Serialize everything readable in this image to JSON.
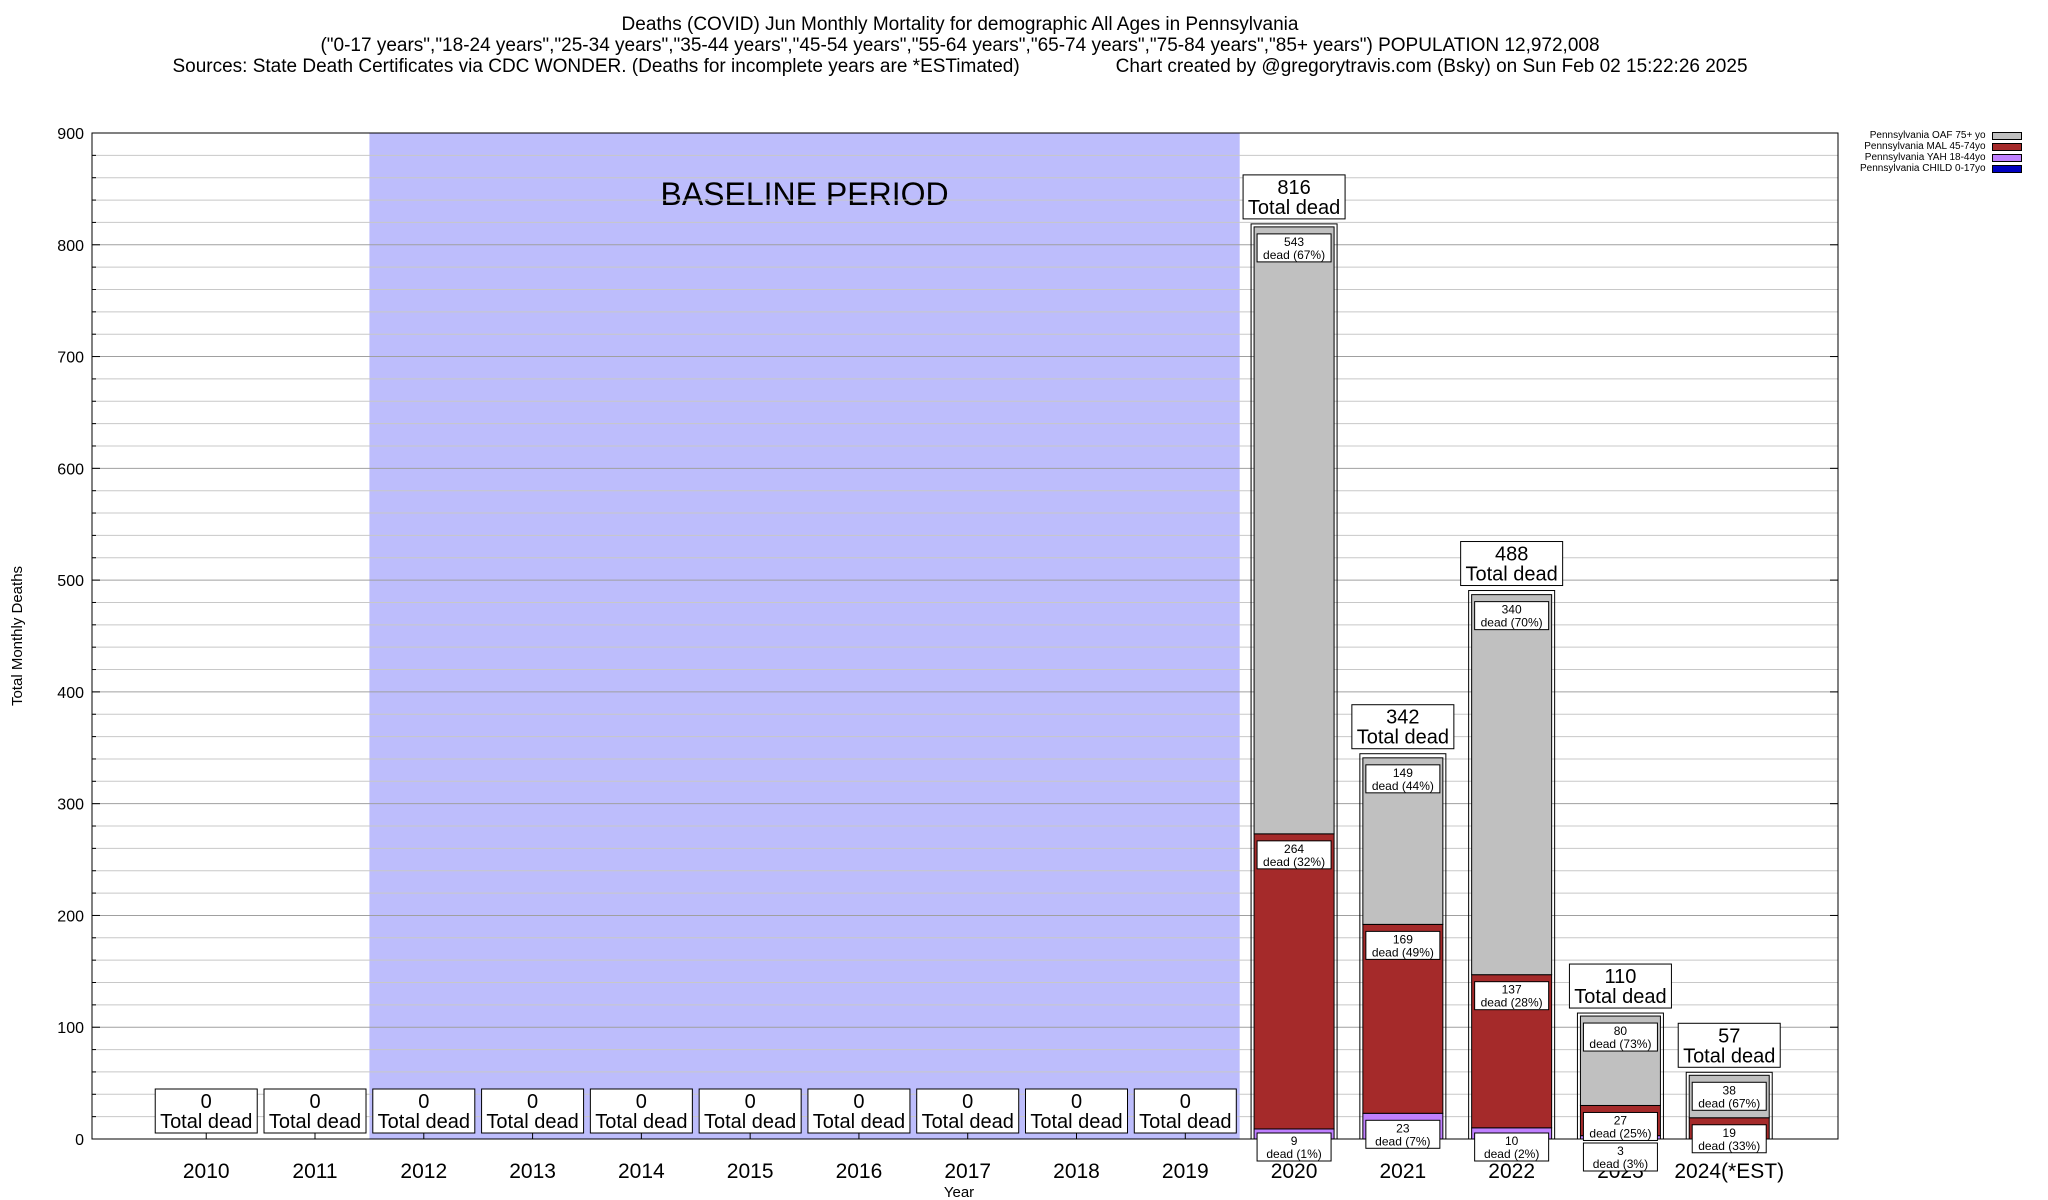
{
  "header": {
    "title": "Deaths (COVID) Jun Monthly Mortality for demographic All Ages in Pennsylvania",
    "subtitle": "(\"0-17 years\",\"18-24 years\",\"25-34 years\",\"35-44 years\",\"45-54 years\",\"55-64 years\",\"65-74 years\",\"75-84 years\",\"85+ years\") POPULATION 12,972,008",
    "sources": "Sources: State Death Certificates via CDC WONDER. (Deaths for incomplete years are *ESTimated)",
    "credit": "Chart created by @gregorytravis.com (Bsky) on Sun Feb 02 15:22:26 2025"
  },
  "legend": [
    {
      "label": "Pennsylvania OAF 75+ yo",
      "color": "#c0c0c0"
    },
    {
      "label": "Pennsylvania MAL 45-74yo",
      "color": "#a52a2a"
    },
    {
      "label": "Pennsylvania YAH 18-44yo",
      "color": "#c080ff"
    },
    {
      "label": "Pennsylvania CHILD 0-17yo",
      "color": "#0000c0"
    }
  ],
  "chart_data": {
    "type": "bar",
    "stacked": true,
    "xlabel": "Year",
    "ylabel": "Total Monthly Deaths",
    "ylim": [
      0,
      900
    ],
    "yticks": [
      0,
      100,
      200,
      300,
      400,
      500,
      600,
      700,
      800,
      900
    ],
    "grid": true,
    "legend_position": "top-right outside",
    "baseline_label": "BASELINE PERIOD",
    "baseline_range": [
      "2012",
      "2019"
    ],
    "baseline_color": "#bdbdfc",
    "categories": [
      "2010",
      "2011",
      "2012",
      "2013",
      "2014",
      "2015",
      "2016",
      "2017",
      "2018",
      "2019",
      "2020",
      "2021",
      "2022",
      "2023",
      "2024(*EST)"
    ],
    "totals": [
      0,
      0,
      0,
      0,
      0,
      0,
      0,
      0,
      0,
      0,
      816,
      342,
      488,
      110,
      57
    ],
    "total_suffix": "Total dead",
    "series": [
      {
        "name": "Pennsylvania CHILD 0-17yo",
        "color": "#0000c0",
        "values": [
          0,
          0,
          0,
          0,
          0,
          0,
          0,
          0,
          0,
          0,
          0,
          0,
          0,
          0,
          0
        ]
      },
      {
        "name": "Pennsylvania YAH 18-44yo",
        "color": "#c080ff",
        "values": [
          0,
          0,
          0,
          0,
          0,
          0,
          0,
          0,
          0,
          0,
          9,
          23,
          10,
          3,
          0
        ]
      },
      {
        "name": "Pennsylvania MAL 45-74yo",
        "color": "#a52a2a",
        "values": [
          0,
          0,
          0,
          0,
          0,
          0,
          0,
          0,
          0,
          0,
          264,
          169,
          137,
          27,
          19
        ]
      },
      {
        "name": "Pennsylvania OAF 75+ yo",
        "color": "#c0c0c0",
        "values": [
          0,
          0,
          0,
          0,
          0,
          0,
          0,
          0,
          0,
          0,
          543,
          149,
          340,
          80,
          38
        ]
      }
    ],
    "segment_labels": [
      {
        "category": "2020",
        "series": "Pennsylvania OAF 75+ yo",
        "value": "543",
        "text": "dead (67%)"
      },
      {
        "category": "2020",
        "series": "Pennsylvania MAL 45-74yo",
        "value": "264",
        "text": "dead (32%)"
      },
      {
        "category": "2020",
        "series": "Pennsylvania YAH 18-44yo",
        "value": "9",
        "text": "dead (1%)"
      },
      {
        "category": "2021",
        "series": "Pennsylvania OAF 75+ yo",
        "value": "149",
        "text": "dead (44%)"
      },
      {
        "category": "2021",
        "series": "Pennsylvania MAL 45-74yo",
        "value": "169",
        "text": "dead (49%)"
      },
      {
        "category": "2021",
        "series": "Pennsylvania YAH 18-44yo",
        "value": "23",
        "text": "dead (7%)"
      },
      {
        "category": "2022",
        "series": "Pennsylvania OAF 75+ yo",
        "value": "340",
        "text": "dead (70%)"
      },
      {
        "category": "2022",
        "series": "Pennsylvania MAL 45-74yo",
        "value": "137",
        "text": "dead (28%)"
      },
      {
        "category": "2022",
        "series": "Pennsylvania YAH 18-44yo",
        "value": "10",
        "text": "dead (2%)"
      },
      {
        "category": "2023",
        "series": "Pennsylvania OAF 75+ yo",
        "value": "80",
        "text": "dead (73%)"
      },
      {
        "category": "2023",
        "series": "Pennsylvania MAL 45-74yo",
        "value": "27",
        "text": "dead (25%)"
      },
      {
        "category": "2023",
        "series": "Pennsylvania YAH 18-44yo",
        "value": "3",
        "text": "dead (3%)"
      },
      {
        "category": "2024(*EST)",
        "series": "Pennsylvania OAF 75+ yo",
        "value": "38",
        "text": "dead (67%)"
      },
      {
        "category": "2024(*EST)",
        "series": "Pennsylvania MAL 45-74yo",
        "value": "19",
        "text": "dead (33%)"
      }
    ]
  }
}
